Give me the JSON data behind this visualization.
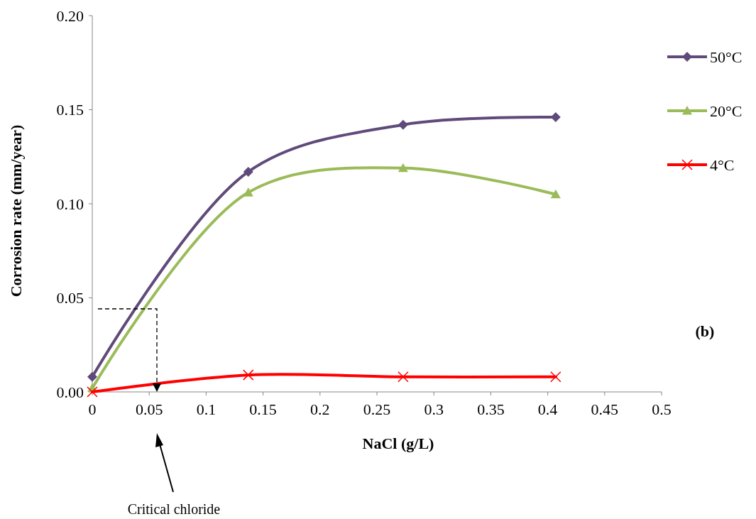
{
  "chart_data": {
    "type": "line",
    "xlabel": "NaCl (g/L)",
    "ylabel": "Corrosion rate (mm/year)",
    "xlim": [
      0,
      0.5
    ],
    "xticks": [
      0,
      0.05,
      0.1,
      0.15,
      0.2,
      0.25,
      0.3,
      0.35,
      0.4,
      0.45,
      0.5
    ],
    "ylim": [
      0,
      0.2
    ],
    "yticks": [
      {
        "value": 0,
        "label": "0.00"
      },
      {
        "value": 0.05,
        "label": "0.05"
      },
      {
        "value": 0.1,
        "label": "0.10"
      },
      {
        "value": 0.15,
        "label": "0.15"
      },
      {
        "value": 0.2,
        "label": "0.20"
      }
    ],
    "grid": false,
    "legend": "top right",
    "line_style": "solid",
    "series": [
      {
        "name": "50°C",
        "color": "#604a7b",
        "marker": "diamond",
        "x": [
          0,
          0.137,
          0.273,
          0.407
        ],
        "values": [
          0.008,
          0.117,
          0.142,
          0.146
        ]
      },
      {
        "name": "20°C",
        "color": "#9bbb59",
        "marker": "triangle",
        "x": [
          0,
          0.137,
          0.273,
          0.407
        ],
        "values": [
          0.002,
          0.106,
          0.119,
          0.105
        ]
      },
      {
        "name": "4°C",
        "color": "#ff0000",
        "marker": "cross",
        "x": [
          0,
          0.137,
          0.273,
          0.407
        ],
        "values": [
          0,
          0.009,
          0.008,
          0.008
        ]
      }
    ],
    "annotations": [
      "Critical chloride",
      "(b)"
    ]
  }
}
